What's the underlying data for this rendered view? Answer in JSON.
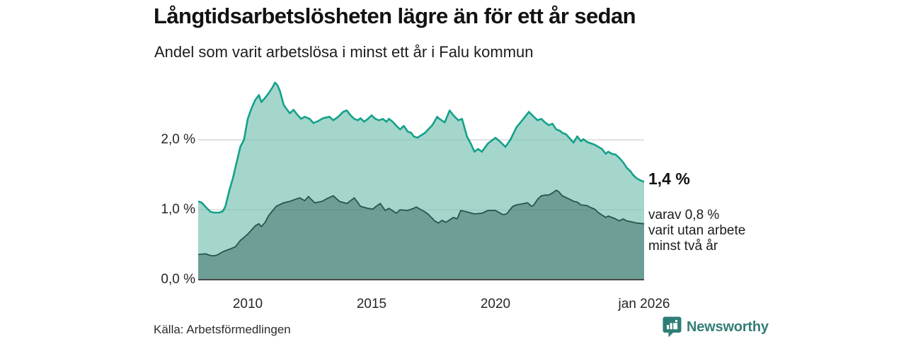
{
  "header": {
    "title": "Långtidsarbetslösheten lägre än för ett år sedan",
    "subtitle": "Andel som varit arbetslösa i minst ett år i Falu kommun"
  },
  "chart_data": {
    "type": "area",
    "title": "Långtidsarbetslösheten lägre än för ett år sedan",
    "subtitle": "Andel som varit arbetslösa i minst ett år i Falu kommun",
    "unit": "%",
    "x_range": [
      2008,
      2026
    ],
    "ylim": [
      0,
      3
    ],
    "grid_values": [
      1,
      2
    ],
    "grid_on": true,
    "y_ticks": [
      {
        "label": "0,0 %",
        "value": 0
      },
      {
        "label": "1,0 %",
        "value": 1
      },
      {
        "label": "2,0 %",
        "value": 2
      }
    ],
    "x_ticks": [
      {
        "label": "2010",
        "year": 2010
      },
      {
        "label": "2015",
        "year": 2015
      },
      {
        "label": "2020",
        "year": 2020
      },
      {
        "label": "jan 2026",
        "year": 2026
      }
    ],
    "series": [
      {
        "name": "Andel som varit arbetslösa i minst ett år",
        "fill": "#a5d6cc",
        "stroke": "#14a18a",
        "end_value": 1.4,
        "points": [
          [
            2008.0,
            1.12
          ],
          [
            2008.15,
            1.1
          ],
          [
            2008.3,
            1.04
          ],
          [
            2008.5,
            0.97
          ],
          [
            2008.65,
            0.96
          ],
          [
            2008.85,
            0.96
          ],
          [
            2009.0,
            0.98
          ],
          [
            2009.1,
            1.05
          ],
          [
            2009.25,
            1.27
          ],
          [
            2009.4,
            1.45
          ],
          [
            2009.5,
            1.6
          ],
          [
            2009.7,
            1.9
          ],
          [
            2009.85,
            2.0
          ],
          [
            2010.0,
            2.3
          ],
          [
            2010.15,
            2.45
          ],
          [
            2010.3,
            2.57
          ],
          [
            2010.45,
            2.64
          ],
          [
            2010.55,
            2.54
          ],
          [
            2010.7,
            2.6
          ],
          [
            2010.85,
            2.67
          ],
          [
            2011.0,
            2.75
          ],
          [
            2011.1,
            2.82
          ],
          [
            2011.2,
            2.78
          ],
          [
            2011.3,
            2.7
          ],
          [
            2011.45,
            2.5
          ],
          [
            2011.55,
            2.45
          ],
          [
            2011.7,
            2.38
          ],
          [
            2011.85,
            2.43
          ],
          [
            2012.0,
            2.36
          ],
          [
            2012.15,
            2.3
          ],
          [
            2012.3,
            2.33
          ],
          [
            2012.5,
            2.3
          ],
          [
            2012.65,
            2.24
          ],
          [
            2012.85,
            2.27
          ],
          [
            2013.05,
            2.31
          ],
          [
            2013.3,
            2.33
          ],
          [
            2013.45,
            2.28
          ],
          [
            2013.65,
            2.33
          ],
          [
            2013.85,
            2.4
          ],
          [
            2014.0,
            2.42
          ],
          [
            2014.15,
            2.35
          ],
          [
            2014.3,
            2.3
          ],
          [
            2014.45,
            2.28
          ],
          [
            2014.55,
            2.31
          ],
          [
            2014.7,
            2.26
          ],
          [
            2014.85,
            2.3
          ],
          [
            2015.0,
            2.35
          ],
          [
            2015.15,
            2.3
          ],
          [
            2015.3,
            2.28
          ],
          [
            2015.45,
            2.3
          ],
          [
            2015.6,
            2.26
          ],
          [
            2015.7,
            2.3
          ],
          [
            2015.85,
            2.26
          ],
          [
            2016.0,
            2.2
          ],
          [
            2016.15,
            2.15
          ],
          [
            2016.3,
            2.2
          ],
          [
            2016.45,
            2.12
          ],
          [
            2016.6,
            2.1
          ],
          [
            2016.7,
            2.05
          ],
          [
            2016.85,
            2.03
          ],
          [
            2017.15,
            2.1
          ],
          [
            2017.45,
            2.21
          ],
          [
            2017.65,
            2.33
          ],
          [
            2017.7,
            2.31
          ],
          [
            2017.95,
            2.25
          ],
          [
            2018.15,
            2.42
          ],
          [
            2018.3,
            2.35
          ],
          [
            2018.5,
            2.28
          ],
          [
            2018.65,
            2.3
          ],
          [
            2018.85,
            2.05
          ],
          [
            2019.0,
            1.95
          ],
          [
            2019.15,
            1.83
          ],
          [
            2019.3,
            1.87
          ],
          [
            2019.45,
            1.83
          ],
          [
            2019.7,
            1.95
          ],
          [
            2020.0,
            2.03
          ],
          [
            2020.2,
            1.97
          ],
          [
            2020.4,
            1.9
          ],
          [
            2020.6,
            2.0
          ],
          [
            2020.85,
            2.18
          ],
          [
            2021.15,
            2.31
          ],
          [
            2021.35,
            2.4
          ],
          [
            2021.55,
            2.33
          ],
          [
            2021.7,
            2.28
          ],
          [
            2021.85,
            2.3
          ],
          [
            2022.0,
            2.25
          ],
          [
            2022.15,
            2.21
          ],
          [
            2022.3,
            2.23
          ],
          [
            2022.45,
            2.15
          ],
          [
            2022.6,
            2.13
          ],
          [
            2022.7,
            2.1
          ],
          [
            2022.85,
            2.08
          ],
          [
            2023.0,
            2.02
          ],
          [
            2023.15,
            1.96
          ],
          [
            2023.3,
            2.05
          ],
          [
            2023.45,
            1.98
          ],
          [
            2023.55,
            2.01
          ],
          [
            2023.7,
            1.97
          ],
          [
            2024.0,
            1.93
          ],
          [
            2024.15,
            1.9
          ],
          [
            2024.3,
            1.87
          ],
          [
            2024.45,
            1.8
          ],
          [
            2024.55,
            1.83
          ],
          [
            2024.7,
            1.8
          ],
          [
            2024.85,
            1.79
          ],
          [
            2025.0,
            1.74
          ],
          [
            2025.15,
            1.68
          ],
          [
            2025.3,
            1.6
          ],
          [
            2025.45,
            1.55
          ],
          [
            2025.55,
            1.5
          ],
          [
            2025.7,
            1.45
          ],
          [
            2025.85,
            1.42
          ],
          [
            2026.0,
            1.4
          ]
        ]
      },
      {
        "name": "varav varit utan arbete minst två år",
        "fill": "#6d9f96",
        "stroke": "#26564e",
        "end_value": 0.8,
        "points": [
          [
            2008.0,
            0.36
          ],
          [
            2008.3,
            0.37
          ],
          [
            2008.45,
            0.35
          ],
          [
            2008.6,
            0.34
          ],
          [
            2008.75,
            0.35
          ],
          [
            2009.0,
            0.4
          ],
          [
            2009.3,
            0.44
          ],
          [
            2009.5,
            0.47
          ],
          [
            2009.7,
            0.56
          ],
          [
            2010.0,
            0.65
          ],
          [
            2010.3,
            0.77
          ],
          [
            2010.45,
            0.8
          ],
          [
            2010.55,
            0.76
          ],
          [
            2010.7,
            0.82
          ],
          [
            2010.85,
            0.92
          ],
          [
            2011.15,
            1.05
          ],
          [
            2011.45,
            1.1
          ],
          [
            2011.7,
            1.12
          ],
          [
            2012.0,
            1.16
          ],
          [
            2012.1,
            1.17
          ],
          [
            2012.3,
            1.13
          ],
          [
            2012.45,
            1.19
          ],
          [
            2012.7,
            1.1
          ],
          [
            2013.0,
            1.12
          ],
          [
            2013.2,
            1.16
          ],
          [
            2013.45,
            1.2
          ],
          [
            2013.7,
            1.12
          ],
          [
            2014.0,
            1.09
          ],
          [
            2014.3,
            1.17
          ],
          [
            2014.45,
            1.1
          ],
          [
            2014.55,
            1.05
          ],
          [
            2014.85,
            1.02
          ],
          [
            2015.05,
            1.01
          ],
          [
            2015.15,
            1.04
          ],
          [
            2015.35,
            1.09
          ],
          [
            2015.55,
            0.99
          ],
          [
            2015.7,
            1.02
          ],
          [
            2016.0,
            0.95
          ],
          [
            2016.15,
            1.0
          ],
          [
            2016.45,
            0.99
          ],
          [
            2016.7,
            1.02
          ],
          [
            2016.8,
            1.04
          ],
          [
            2017.15,
            0.97
          ],
          [
            2017.3,
            0.93
          ],
          [
            2017.55,
            0.84
          ],
          [
            2017.7,
            0.81
          ],
          [
            2017.85,
            0.85
          ],
          [
            2018.0,
            0.82
          ],
          [
            2018.3,
            0.89
          ],
          [
            2018.45,
            0.87
          ],
          [
            2018.6,
            0.99
          ],
          [
            2018.85,
            0.97
          ],
          [
            2019.15,
            0.94
          ],
          [
            2019.45,
            0.95
          ],
          [
            2019.7,
            0.99
          ],
          [
            2020.0,
            0.99
          ],
          [
            2020.3,
            0.93
          ],
          [
            2020.45,
            0.94
          ],
          [
            2020.7,
            1.05
          ],
          [
            2020.85,
            1.07
          ],
          [
            2021.15,
            1.09
          ],
          [
            2021.3,
            1.1
          ],
          [
            2021.45,
            1.05
          ],
          [
            2021.55,
            1.07
          ],
          [
            2021.7,
            1.15
          ],
          [
            2021.85,
            1.2
          ],
          [
            2022.0,
            1.21
          ],
          [
            2022.15,
            1.21
          ],
          [
            2022.3,
            1.24
          ],
          [
            2022.45,
            1.28
          ],
          [
            2022.55,
            1.26
          ],
          [
            2022.7,
            1.2
          ],
          [
            2023.0,
            1.15
          ],
          [
            2023.15,
            1.12
          ],
          [
            2023.3,
            1.11
          ],
          [
            2023.45,
            1.07
          ],
          [
            2023.7,
            1.06
          ],
          [
            2023.85,
            1.03
          ],
          [
            2024.0,
            1.01
          ],
          [
            2024.15,
            0.96
          ],
          [
            2024.45,
            0.89
          ],
          [
            2024.55,
            0.91
          ],
          [
            2024.85,
            0.87
          ],
          [
            2025.0,
            0.84
          ],
          [
            2025.15,
            0.87
          ],
          [
            2025.3,
            0.84
          ],
          [
            2025.45,
            0.83
          ],
          [
            2025.7,
            0.81
          ],
          [
            2026.0,
            0.8
          ]
        ]
      }
    ],
    "annotations": {
      "end_label": "1,4 %",
      "varav_lines": [
        "varav 0,8 %",
        "varit utan arbete",
        "minst två år"
      ]
    },
    "legend_position": "none"
  },
  "footer": {
    "source": "Källa: Arbetsförmedlingen",
    "brand": "Newsworthy"
  },
  "colors": {
    "series1_fill": "#a5d6cc",
    "series1_line": "#14a18a",
    "series2_fill": "#6d9f96",
    "series2_line": "#26564e",
    "gridline": "#d9d9d9",
    "axis_line": "#4a4a4a",
    "brand_teal": "#337e77"
  }
}
